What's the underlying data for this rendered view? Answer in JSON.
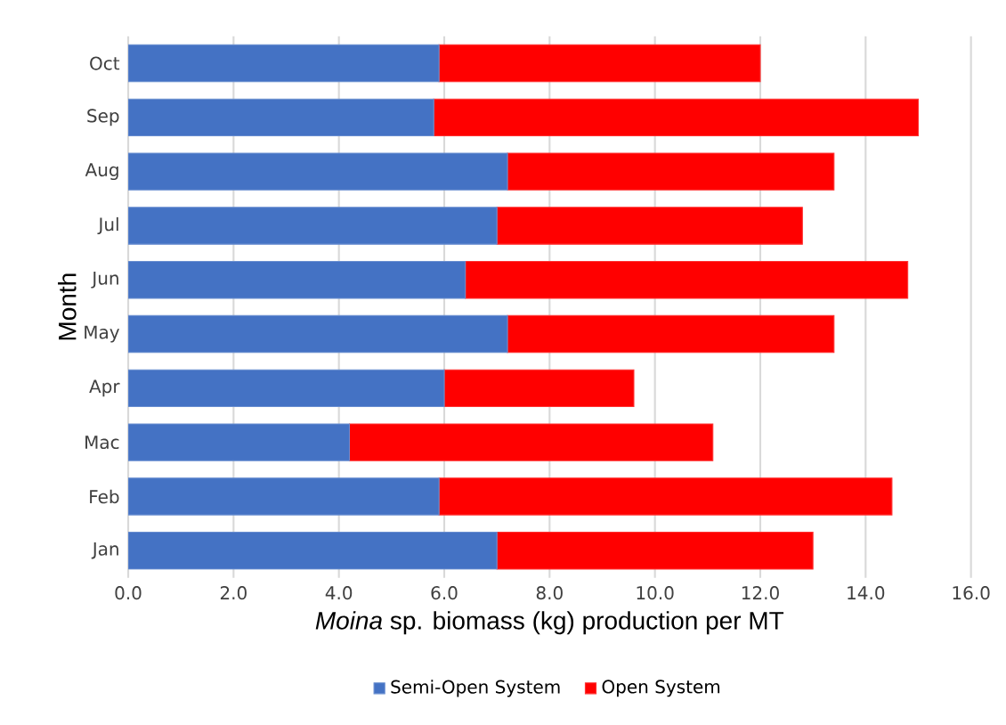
{
  "chart_data": {
    "type": "bar",
    "orientation": "horizontal",
    "stacked": true,
    "xlabel": "*Moina* sp. biomass (kg) production per MT",
    "ylabel": "Month",
    "categories": [
      "Oct",
      "Sep",
      "Aug",
      "Jul",
      "Jun",
      "May",
      "Apr",
      "Mac",
      "Feb",
      "Jan"
    ],
    "series": [
      {
        "name": "Semi-Open System",
        "color": "#4472c4",
        "values": [
          5.9,
          5.8,
          7.2,
          7.0,
          6.4,
          7.2,
          6.0,
          4.2,
          5.9,
          7.0
        ]
      },
      {
        "name": "Open System",
        "color": "#ff0000",
        "values": [
          6.1,
          9.2,
          6.2,
          5.8,
          8.4,
          6.2,
          3.6,
          6.9,
          8.6,
          6.0
        ]
      }
    ],
    "xlim": [
      0,
      16
    ],
    "xticks": [
      {
        "value": 0,
        "label": "0.0"
      },
      {
        "value": 2,
        "label": "2.0"
      },
      {
        "value": 4,
        "label": "4.0"
      },
      {
        "value": 6,
        "label": "6.0"
      },
      {
        "value": 8,
        "label": "8.0"
      },
      {
        "value": 10,
        "label": "10.0"
      },
      {
        "value": 12,
        "label": "12.0"
      },
      {
        "value": 14,
        "label": "14.0"
      },
      {
        "value": 16,
        "label": "16.0"
      }
    ],
    "grid": "x",
    "legend": "bottom"
  }
}
